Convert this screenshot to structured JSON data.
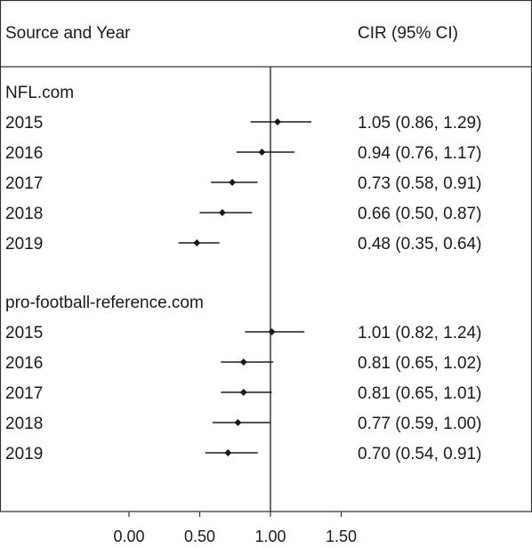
{
  "chart_data": {
    "type": "forest",
    "header": {
      "label_column": "Source and Year",
      "estimate_column": "CIR (95% CI)"
    },
    "reference_line": 1.0,
    "x_ticks": [
      "0.00",
      "0.50",
      "1.00",
      "1.50"
    ],
    "x_tick_values": [
      0,
      0.5,
      1.0,
      1.5
    ],
    "xlim": [
      0,
      1.5
    ],
    "groups": [
      {
        "name": "NFL.com",
        "rows": [
          {
            "year": "2015",
            "est": 1.05,
            "lo": 0.86,
            "hi": 1.29,
            "label": "1.05 (0.86, 1.29)"
          },
          {
            "year": "2016",
            "est": 0.94,
            "lo": 0.76,
            "hi": 1.17,
            "label": "0.94 (0.76, 1.17)"
          },
          {
            "year": "2017",
            "est": 0.73,
            "lo": 0.58,
            "hi": 0.91,
            "label": "0.73 (0.58, 0.91)"
          },
          {
            "year": "2018",
            "est": 0.66,
            "lo": 0.5,
            "hi": 0.87,
            "label": "0.66 (0.50, 0.87)"
          },
          {
            "year": "2019",
            "est": 0.48,
            "lo": 0.35,
            "hi": 0.64,
            "label": "0.48 (0.35, 0.64)"
          }
        ]
      },
      {
        "name": "pro-football-reference.com",
        "rows": [
          {
            "year": "2015",
            "est": 1.01,
            "lo": 0.82,
            "hi": 1.24,
            "label": "1.01 (0.82, 1.24)"
          },
          {
            "year": "2016",
            "est": 0.81,
            "lo": 0.65,
            "hi": 1.02,
            "label": "0.81 (0.65, 1.02)"
          },
          {
            "year": "2017",
            "est": 0.81,
            "lo": 0.65,
            "hi": 1.01,
            "label": "0.81 (0.65, 1.01)"
          },
          {
            "year": "2018",
            "est": 0.77,
            "lo": 0.59,
            "hi": 1.0,
            "label": "0.77 (0.59, 1.00)"
          },
          {
            "year": "2019",
            "est": 0.7,
            "lo": 0.54,
            "hi": 0.91,
            "label": "0.70 (0.54, 0.91)"
          }
        ]
      }
    ],
    "colors": {
      "ink": "#1a1a1a",
      "frame": "#333333"
    }
  }
}
